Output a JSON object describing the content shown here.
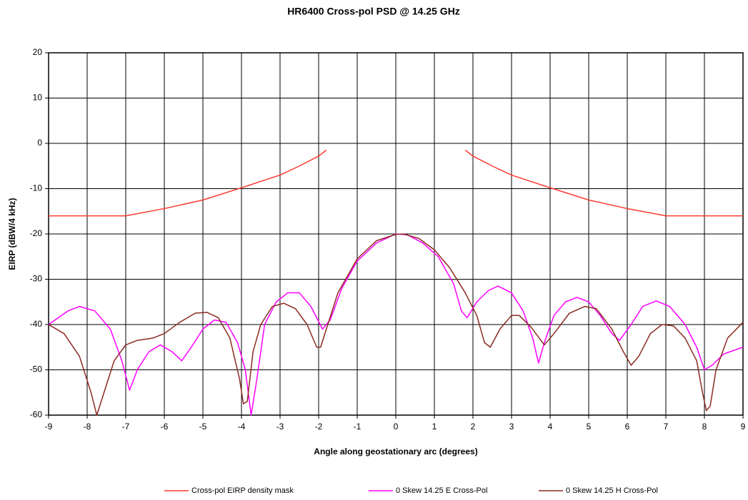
{
  "chart_data": {
    "type": "line",
    "title": "HR6400 Cross-pol PSD @ 14.25 GHz",
    "xlabel": "Angle along geostationary arc (degrees)",
    "ylabel": "EIRP (dBW/4 kHz)",
    "xlim": [
      -9,
      9
    ],
    "ylim": [
      -60,
      20
    ],
    "xticks": [
      -9,
      -8,
      -7,
      -6,
      -5,
      -4,
      -3,
      -2,
      -1,
      0,
      1,
      2,
      3,
      4,
      5,
      6,
      7,
      8,
      9
    ],
    "yticks": [
      -60,
      -50,
      -40,
      -30,
      -20,
      -10,
      0,
      10,
      20
    ],
    "grid": true,
    "legend": "bottom",
    "series": [
      {
        "name": "Cross-pol EIRP density mask",
        "color": "#ff3b30",
        "x": [
          -9,
          -7,
          -6,
          -5,
          -4,
          -3,
          -2.5,
          -2,
          -1.8,
          0,
          1.8,
          2,
          2.5,
          3,
          4,
          5,
          6,
          7,
          9
        ],
        "values": [
          -16,
          -16,
          -14.4,
          -12.5,
          -9.8,
          -7,
          -5,
          -2.8,
          -1.5,
          null,
          -1.5,
          -2.8,
          -5,
          -7,
          -9.8,
          -12.5,
          -14.4,
          -16,
          -16
        ]
      },
      {
        "name": "0 Skew 14.25 E Cross-Pol",
        "color": "#ff00ff",
        "x": [
          -9,
          -8.5,
          -8.2,
          -7.8,
          -7.4,
          -7.1,
          -6.9,
          -6.7,
          -6.4,
          -6.1,
          -5.8,
          -5.55,
          -5.3,
          -5,
          -4.7,
          -4.4,
          -4.1,
          -3.9,
          -3.75,
          -3.6,
          -3.4,
          -3.1,
          -2.8,
          -2.5,
          -2.2,
          -1.9,
          -1.7,
          -1.4,
          -1,
          -0.5,
          0,
          0.3,
          0.7,
          1.1,
          1.5,
          1.7,
          1.85,
          2.1,
          2.4,
          2.65,
          3,
          3.3,
          3.55,
          3.7,
          3.85,
          4.1,
          4.4,
          4.7,
          5,
          5.3,
          5.6,
          5.8,
          6.1,
          6.4,
          6.75,
          7.1,
          7.5,
          7.8,
          8,
          8.2,
          8.5,
          9
        ],
        "values": [
          -40,
          -37,
          -36,
          -37,
          -41,
          -48,
          -54.5,
          -50,
          -46,
          -44.5,
          -46,
          -48,
          -45,
          -41,
          -39,
          -39.5,
          -44,
          -50,
          -60,
          -52,
          -40,
          -35,
          -33,
          -33,
          -36,
          -41,
          -39,
          -32,
          -26,
          -22,
          -20,
          -20.2,
          -22,
          -25,
          -31,
          -37,
          -38.5,
          -35,
          -32.5,
          -31.5,
          -33,
          -37,
          -43,
          -48.5,
          -44,
          -38,
          -35,
          -34,
          -35,
          -38,
          -42,
          -43.5,
          -40,
          -36,
          -34.8,
          -36,
          -40,
          -45,
          -50,
          -49,
          -46.5,
          -45
        ]
      },
      {
        "name": "0 Skew 14.25 H Cross-Pol",
        "color": "#8b2a22",
        "x": [
          -9,
          -8.6,
          -8.2,
          -7.9,
          -7.75,
          -7.6,
          -7.3,
          -7,
          -6.7,
          -6.3,
          -6,
          -5.6,
          -5.2,
          -4.9,
          -4.6,
          -4.3,
          -4.05,
          -3.95,
          -3.85,
          -3.7,
          -3.5,
          -3.2,
          -2.9,
          -2.6,
          -2.3,
          -2.05,
          -1.95,
          -1.8,
          -1.5,
          -1,
          -0.5,
          0,
          0.2,
          0.6,
          1,
          1.4,
          1.8,
          2.1,
          2.3,
          2.45,
          2.7,
          3,
          3.2,
          3.5,
          3.85,
          4.1,
          4.5,
          4.9,
          5.2,
          5.6,
          5.9,
          6.1,
          6.3,
          6.6,
          6.9,
          7.2,
          7.5,
          7.8,
          7.95,
          8.05,
          8.15,
          8.3,
          8.6,
          9
        ],
        "values": [
          -40,
          -42,
          -47,
          -55,
          -60,
          -56,
          -48,
          -44.5,
          -43.5,
          -43,
          -42,
          -39.5,
          -37.5,
          -37.3,
          -38.5,
          -43,
          -52,
          -57.5,
          -57,
          -46,
          -40,
          -36,
          -35.3,
          -36.5,
          -40,
          -45,
          -45,
          -41,
          -33,
          -25.5,
          -21.5,
          -20.1,
          -20,
          -21,
          -23.5,
          -27.5,
          -33,
          -38,
          -44,
          -45,
          -41,
          -38,
          -38,
          -40.5,
          -44.5,
          -42,
          -37.5,
          -36,
          -36.5,
          -41,
          -46,
          -49,
          -47,
          -42,
          -40,
          -40.3,
          -43,
          -48,
          -55,
          -59,
          -58,
          -50,
          -43,
          -39.5
        ]
      }
    ]
  }
}
